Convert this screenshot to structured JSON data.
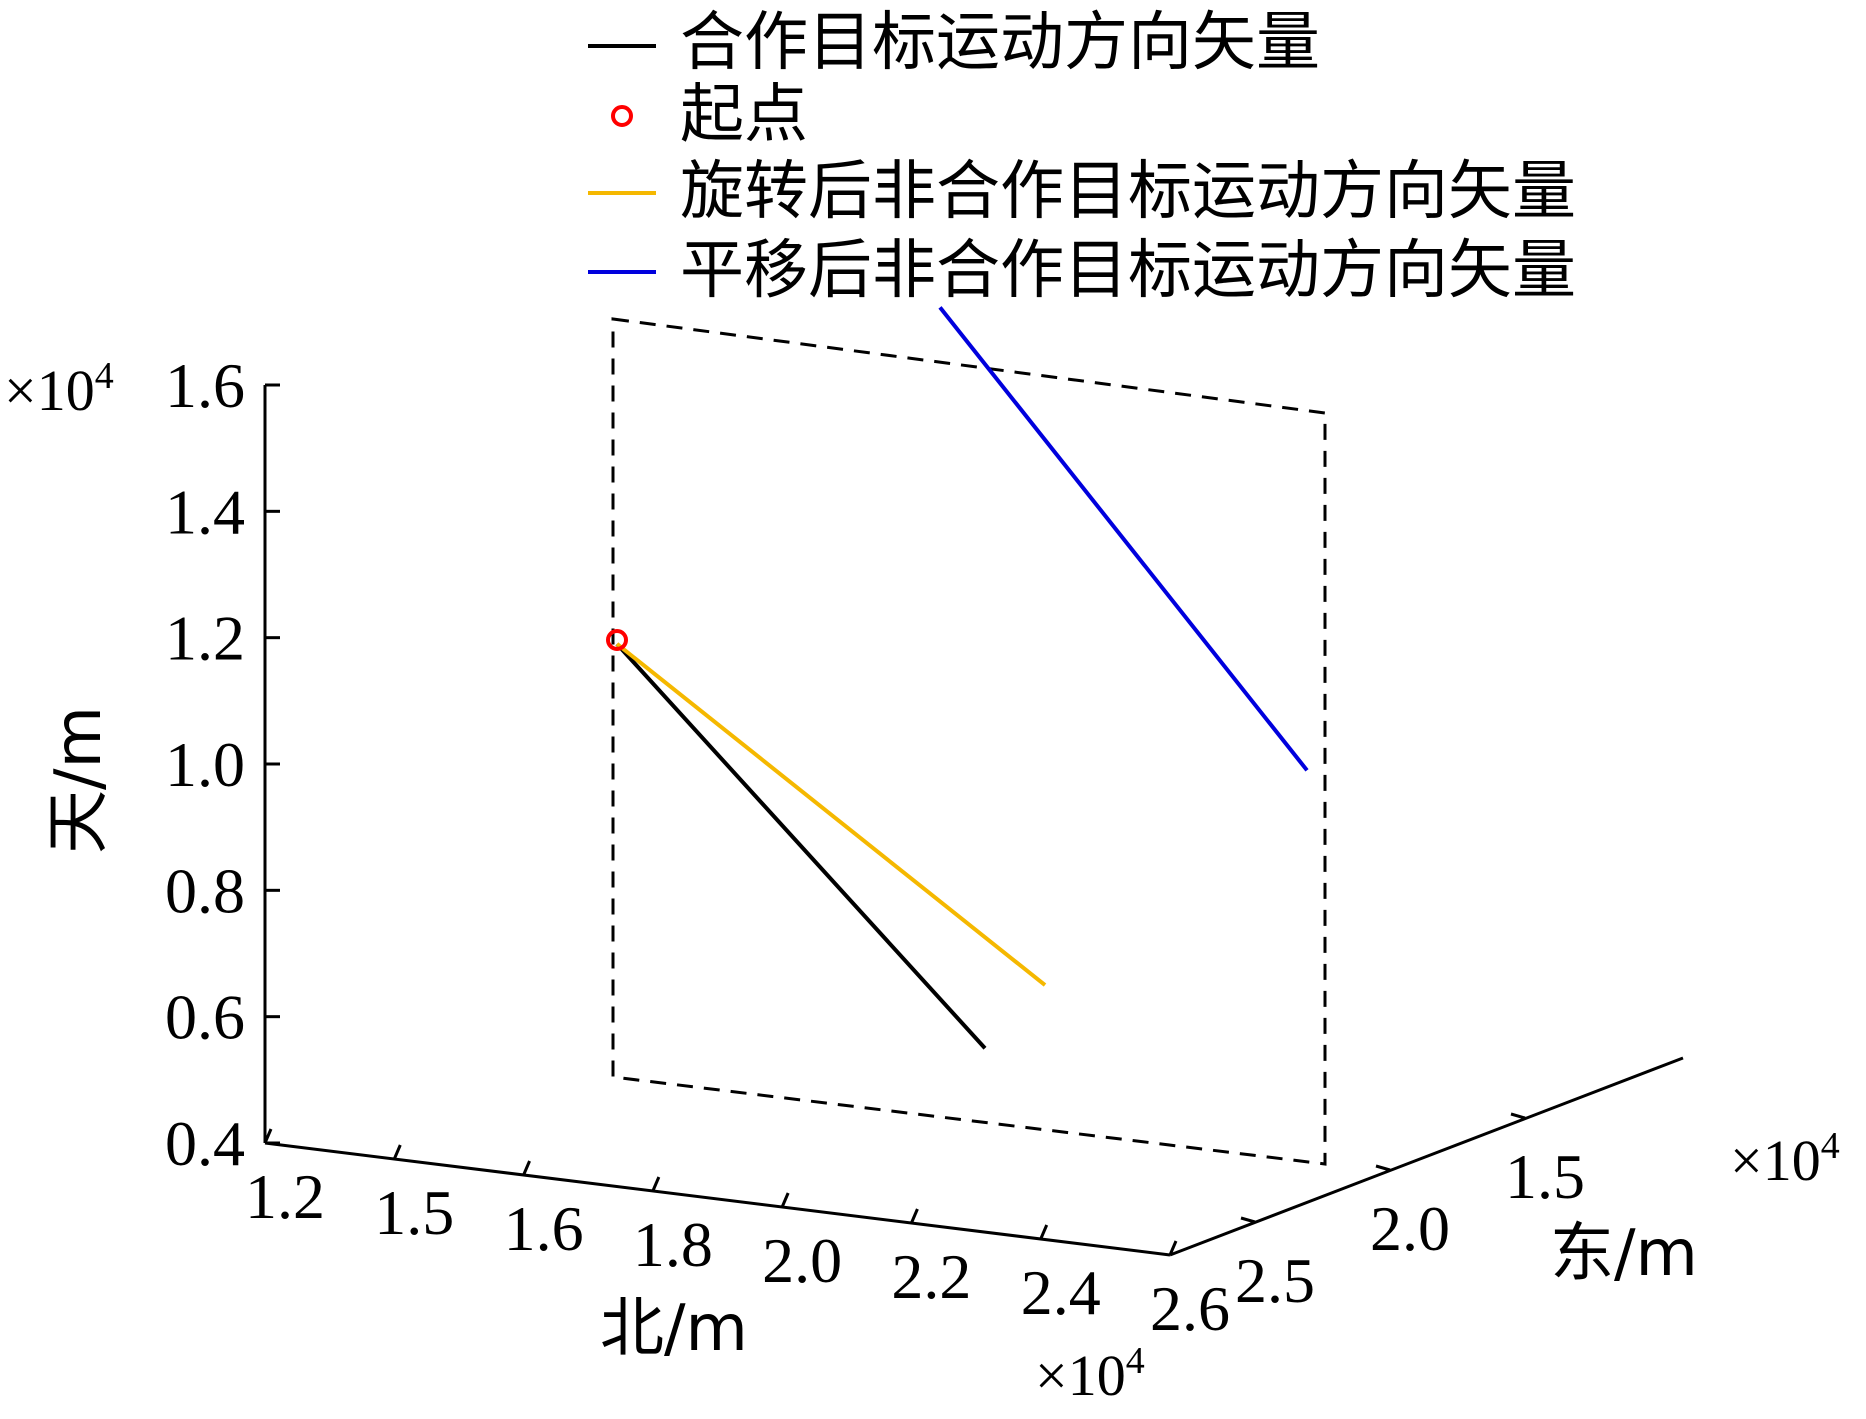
{
  "chart_data": {
    "type": "line3d",
    "legend": [
      {
        "label": "合作目标运动方向矢量",
        "color": "#000000",
        "marker": "line"
      },
      {
        "label": "起点",
        "color": "#ff0000",
        "marker": "circle"
      },
      {
        "label": "旋转后非合作目标运动方向矢量",
        "color": "#f5b800",
        "marker": "line"
      },
      {
        "label": "平移后非合作目标运动方向矢量",
        "color": "#0000dd",
        "marker": "line"
      }
    ],
    "axes": {
      "z": {
        "label": "天/m",
        "ticks": [
          "0.4",
          "0.6",
          "0.8",
          "1.0",
          "1.2",
          "1.4",
          "1.6"
        ],
        "values": [
          0.4,
          0.6,
          0.8,
          1.0,
          1.2,
          1.4,
          1.6
        ],
        "multiplier": "×10",
        "exponent": "4",
        "range": [
          0.4,
          1.6
        ]
      },
      "north": {
        "label": "北/m",
        "ticks": [
          "1.2",
          "1.5",
          "1.6",
          "1.8",
          "2.0",
          "2.2",
          "2.4",
          "2.6"
        ],
        "multiplier": "×10",
        "exponent": "4"
      },
      "east": {
        "label": "东/m",
        "ticks": [
          "1.5",
          "2.0",
          "2.5"
        ],
        "multiplier": "×10",
        "exponent": "4"
      }
    },
    "series": [
      {
        "name": "合作目标运动方向矢量",
        "color": "#000000",
        "z": [
          1.19,
          0.55
        ]
      },
      {
        "name": "旋转后非合作目标运动方向矢量",
        "color": "#f5b800",
        "z": [
          1.19,
          0.65
        ]
      },
      {
        "name": "平移后非合作目标运动方向矢量",
        "color": "#0000dd",
        "z": [
          1.65,
          0.99
        ]
      }
    ],
    "start_point": {
      "z": 1.19
    }
  }
}
